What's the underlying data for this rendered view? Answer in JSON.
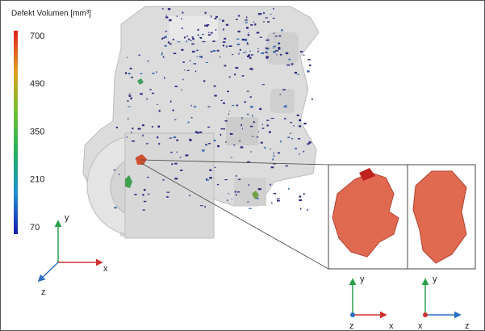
{
  "legend": {
    "title": "Defekt Volumen [mm³]",
    "ticks": [
      700,
      490,
      350,
      210,
      70
    ]
  },
  "main_axes": {
    "y": "y",
    "x": "x",
    "z": "z"
  },
  "inset_left_axes": {
    "y": "y",
    "z": "z",
    "x": "x"
  },
  "inset_right_axes": {
    "y": "y",
    "x": "x",
    "z": "z"
  }
}
